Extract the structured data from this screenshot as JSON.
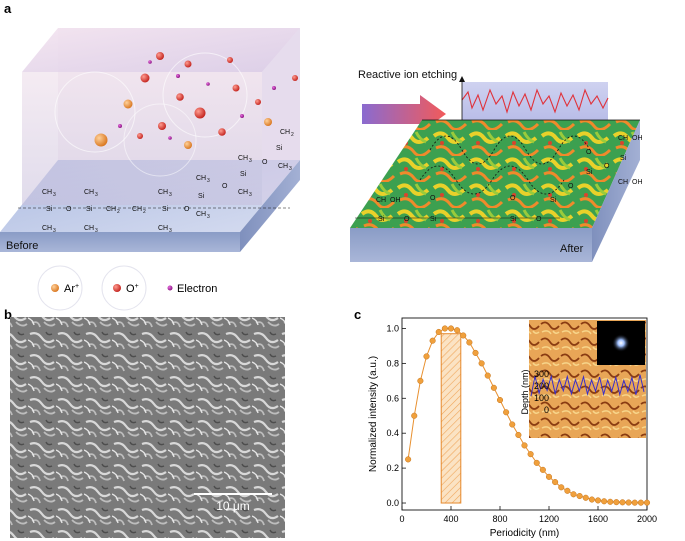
{
  "panel_labels": {
    "a": "a",
    "b": "b",
    "c": "c"
  },
  "panel_a": {
    "before_label": "Before",
    "after_label": "After",
    "arrow_label": "Reactive ion etching",
    "legend": [
      {
        "label": "Ar",
        "sup": "+",
        "color": "#e8892c"
      },
      {
        "label": "O",
        "sup": "+",
        "color": "#d8342a"
      },
      {
        "label": "Electron",
        "sup": "",
        "color": "#a0189a"
      }
    ],
    "chem_before": {
      "ch3": "CH",
      "sub3": "3",
      "si": "Si",
      "o": "O",
      "ch2": "CH",
      "sub2": "2"
    },
    "chem_after": {
      "ch2oh": "CH",
      "oh": "OH",
      "o": "O",
      "si": "Si"
    }
  },
  "panel_b": {
    "scale_bar": "10 μm"
  },
  "panel_c": {
    "chart_data": {
      "type": "line",
      "xlabel": "Periodicity (nm)",
      "ylabel": "Normalized intensity (a.u.)",
      "xlim": [
        0,
        2000
      ],
      "ylim": [
        0,
        1.0
      ],
      "xticks": [
        0,
        400,
        800,
        1200,
        1600,
        2000
      ],
      "yticks": [
        0.0,
        0.2,
        0.4,
        0.6,
        0.8,
        1.0
      ],
      "x": [
        50,
        100,
        150,
        200,
        250,
        300,
        350,
        400,
        450,
        500,
        550,
        600,
        650,
        700,
        750,
        800,
        850,
        900,
        950,
        1000,
        1050,
        1100,
        1150,
        1200,
        1250,
        1300,
        1350,
        1400,
        1450,
        1500,
        1550,
        1600,
        1650,
        1700,
        1750,
        1800,
        1850,
        1900,
        1950,
        2000
      ],
      "y": [
        0.25,
        0.5,
        0.7,
        0.84,
        0.93,
        0.98,
        1.0,
        1.0,
        0.99,
        0.96,
        0.92,
        0.86,
        0.8,
        0.73,
        0.66,
        0.59,
        0.52,
        0.45,
        0.39,
        0.33,
        0.28,
        0.23,
        0.19,
        0.15,
        0.12,
        0.09,
        0.07,
        0.05,
        0.04,
        0.03,
        0.02,
        0.015,
        0.01,
        0.007,
        0.005,
        0.004,
        0.003,
        0.002,
        0.002,
        0.002
      ],
      "highlight_range": [
        320,
        480
      ],
      "highlight_top": 0.97,
      "inset": {
        "ylabel": "Depth (nm)",
        "yticks": [
          0,
          100,
          200,
          300
        ]
      }
    }
  }
}
